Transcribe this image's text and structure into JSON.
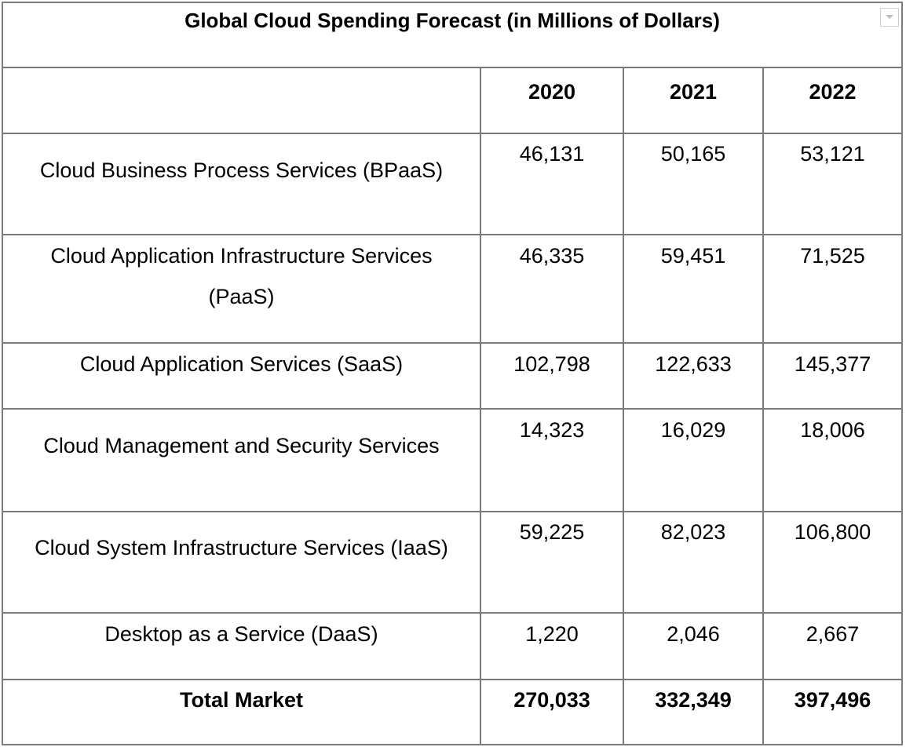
{
  "title": "Global Cloud Spending Forecast (in Millions of Dollars)",
  "columns": [
    "",
    "2020",
    "2021",
    "2022"
  ],
  "rows": [
    {
      "label": "Cloud Business Process Services (BPaaS)",
      "values": [
        "46,131",
        "50,165",
        "53,121"
      ]
    },
    {
      "label": "Cloud Application Infrastructure Services (PaaS)",
      "values": [
        "46,335",
        "59,451",
        "71,525"
      ]
    },
    {
      "label": "Cloud Application Services (SaaS)",
      "values": [
        "102,798",
        "122,633",
        "145,377"
      ]
    },
    {
      "label": "Cloud Management and Security Services",
      "values": [
        "14,323",
        "16,029",
        "18,006"
      ]
    },
    {
      "label": "Cloud System Infrastructure Services (IaaS)",
      "values": [
        "59,225",
        "82,023",
        "106,800"
      ]
    },
    {
      "label": "Desktop as a Service (DaaS)",
      "values": [
        "1,220",
        "2,046",
        "2,667"
      ]
    }
  ],
  "total": {
    "label": "Total Market",
    "values": [
      "270,033",
      "332,349",
      "397,496"
    ]
  },
  "icons": {
    "dropdown": "chevron-down-icon"
  }
}
